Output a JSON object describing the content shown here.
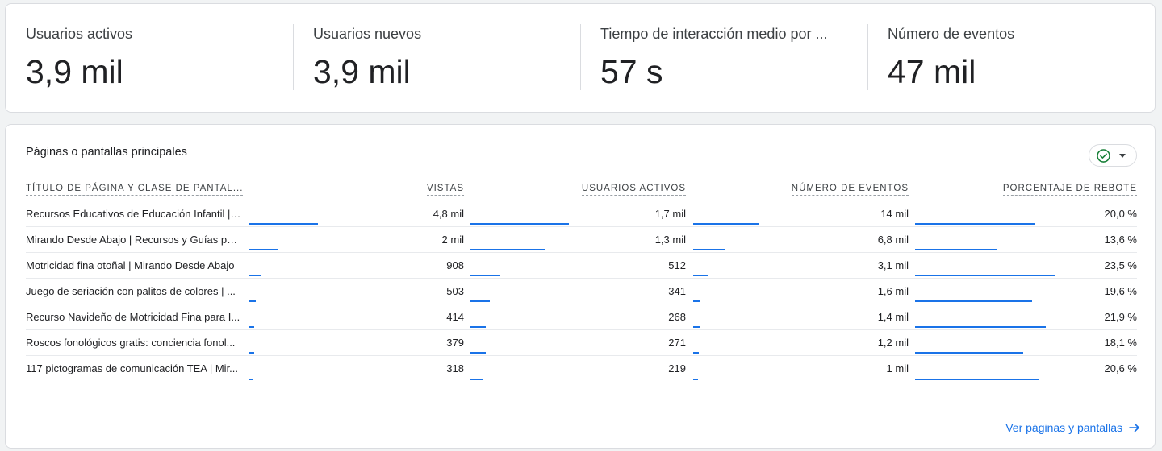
{
  "metrics": [
    {
      "label": "Usuarios activos",
      "value": "3,9 mil"
    },
    {
      "label": "Usuarios nuevos",
      "value": "3,9 mil"
    },
    {
      "label": "Tiempo de interacción medio por ...",
      "value": "57 s"
    },
    {
      "label": "Número de eventos",
      "value": "47 mil"
    }
  ],
  "table": {
    "title": "Páginas o pantallas principales",
    "compare_icon": "check-circle-icon",
    "headers": {
      "title": "TÍTULO DE PÁGINA Y CLASE DE PANTAL...",
      "views": "VISTAS",
      "users": "USUARIOS ACTIVOS",
      "events": "NÚMERO DE EVENTOS",
      "bounce": "PORCENTAJE DE REBOTE"
    },
    "rows": [
      {
        "title": "Recursos Educativos de Educación Infantil | ...",
        "views": "4,8 mil",
        "users": "1,7 mil",
        "events": "14 mil",
        "bounce": "20,0 %",
        "views_num": 4800,
        "users_num": 1700,
        "events_num": 14000,
        "bounce_num": 20.0
      },
      {
        "title": "Mirando Desde Abajo | Recursos y Guías por...",
        "views": "2 mil",
        "users": "1,3 mil",
        "events": "6,8 mil",
        "bounce": "13,6 %",
        "views_num": 2000,
        "users_num": 1300,
        "events_num": 6800,
        "bounce_num": 13.6
      },
      {
        "title": "Motricidad fina otoñal | Mirando Desde Abajo",
        "views": "908",
        "users": "512",
        "events": "3,1 mil",
        "bounce": "23,5 %",
        "views_num": 908,
        "users_num": 512,
        "events_num": 3100,
        "bounce_num": 23.5
      },
      {
        "title": "Juego de seriación con palitos de colores | ...",
        "views": "503",
        "users": "341",
        "events": "1,6 mil",
        "bounce": "19,6 %",
        "views_num": 503,
        "users_num": 341,
        "events_num": 1600,
        "bounce_num": 19.6
      },
      {
        "title": "Recurso Navideño de Motricidad Fina para I...",
        "views": "414",
        "users": "268",
        "events": "1,4 mil",
        "bounce": "21,9 %",
        "views_num": 414,
        "users_num": 268,
        "events_num": 1400,
        "bounce_num": 21.9
      },
      {
        "title": "Roscos fonológicos gratis: conciencia fonol...",
        "views": "379",
        "users": "271",
        "events": "1,2 mil",
        "bounce": "18,1 %",
        "views_num": 379,
        "users_num": 271,
        "events_num": 1200,
        "bounce_num": 18.1
      },
      {
        "title": "117 pictogramas de comunicación TEA | Mir...",
        "views": "318",
        "users": "219",
        "events": "1 mil",
        "bounce": "20,6 %",
        "views_num": 318,
        "users_num": 219,
        "events_num": 1000,
        "bounce_num": 20.6
      }
    ],
    "footer_link": "Ver páginas y pantallas",
    "footer_icon": "arrow-right-icon"
  },
  "colors": {
    "accent": "#1a73e8",
    "check": "#188038"
  }
}
